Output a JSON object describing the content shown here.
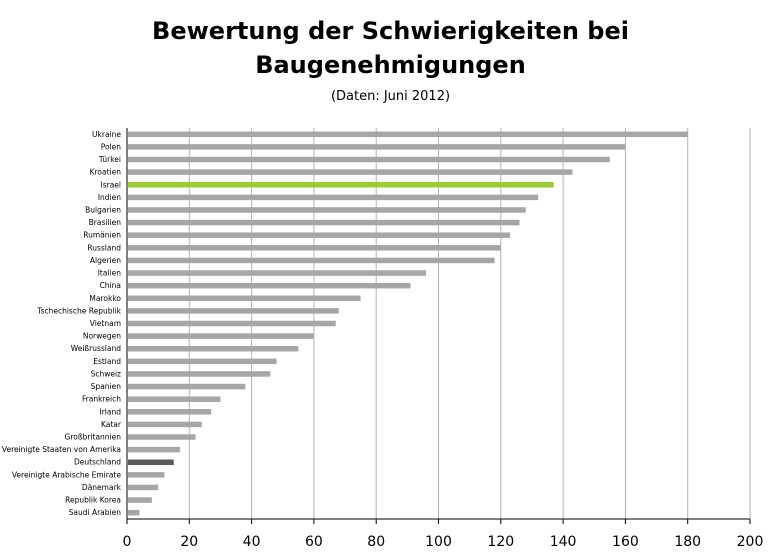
{
  "chart_data": {
    "type": "bar",
    "orientation": "horizontal",
    "title_line1": "Bewertung der Schwierigkeiten bei",
    "title_line2": "Baugenehmigungen",
    "subtitle": "(Daten: Juni 2012)",
    "xlim": [
      0,
      200
    ],
    "xticks": [
      0,
      20,
      40,
      60,
      80,
      100,
      120,
      140,
      160,
      180,
      200
    ],
    "grid": true,
    "categories": [
      "Ukraine",
      "Polen",
      "Türkei",
      "Kroatien",
      "Israel",
      "Indien",
      "Bulgarien",
      "Brasilien",
      "Rumänien",
      "Russland",
      "Algerien",
      "Italien",
      "China",
      "Marokko",
      "Tschechische Republik",
      "Vietnam",
      "Norwegen",
      "Weißrussland",
      "Estland",
      "Schweiz",
      "Spanien",
      "Frankreich",
      "Irland",
      "Katar",
      "Großbritannien",
      "Vereinigte Staaten von Amerika",
      "Deutschland",
      "Vereinigte Arabische Emirate",
      "Dänemark",
      "Republik Korea",
      "Saudi Arabien"
    ],
    "values": [
      180,
      160,
      155,
      143,
      137,
      132,
      128,
      126,
      123,
      120,
      118,
      96,
      91,
      75,
      68,
      67,
      60,
      55,
      48,
      46,
      38,
      30,
      27,
      24,
      22,
      17,
      15,
      12,
      10,
      8,
      4
    ],
    "colors": {
      "default": "#a6a6a6",
      "Israel": "#9acd32",
      "Deutschland": "#595959",
      "grid": "#b3b3b3",
      "axis": "#000000"
    }
  }
}
